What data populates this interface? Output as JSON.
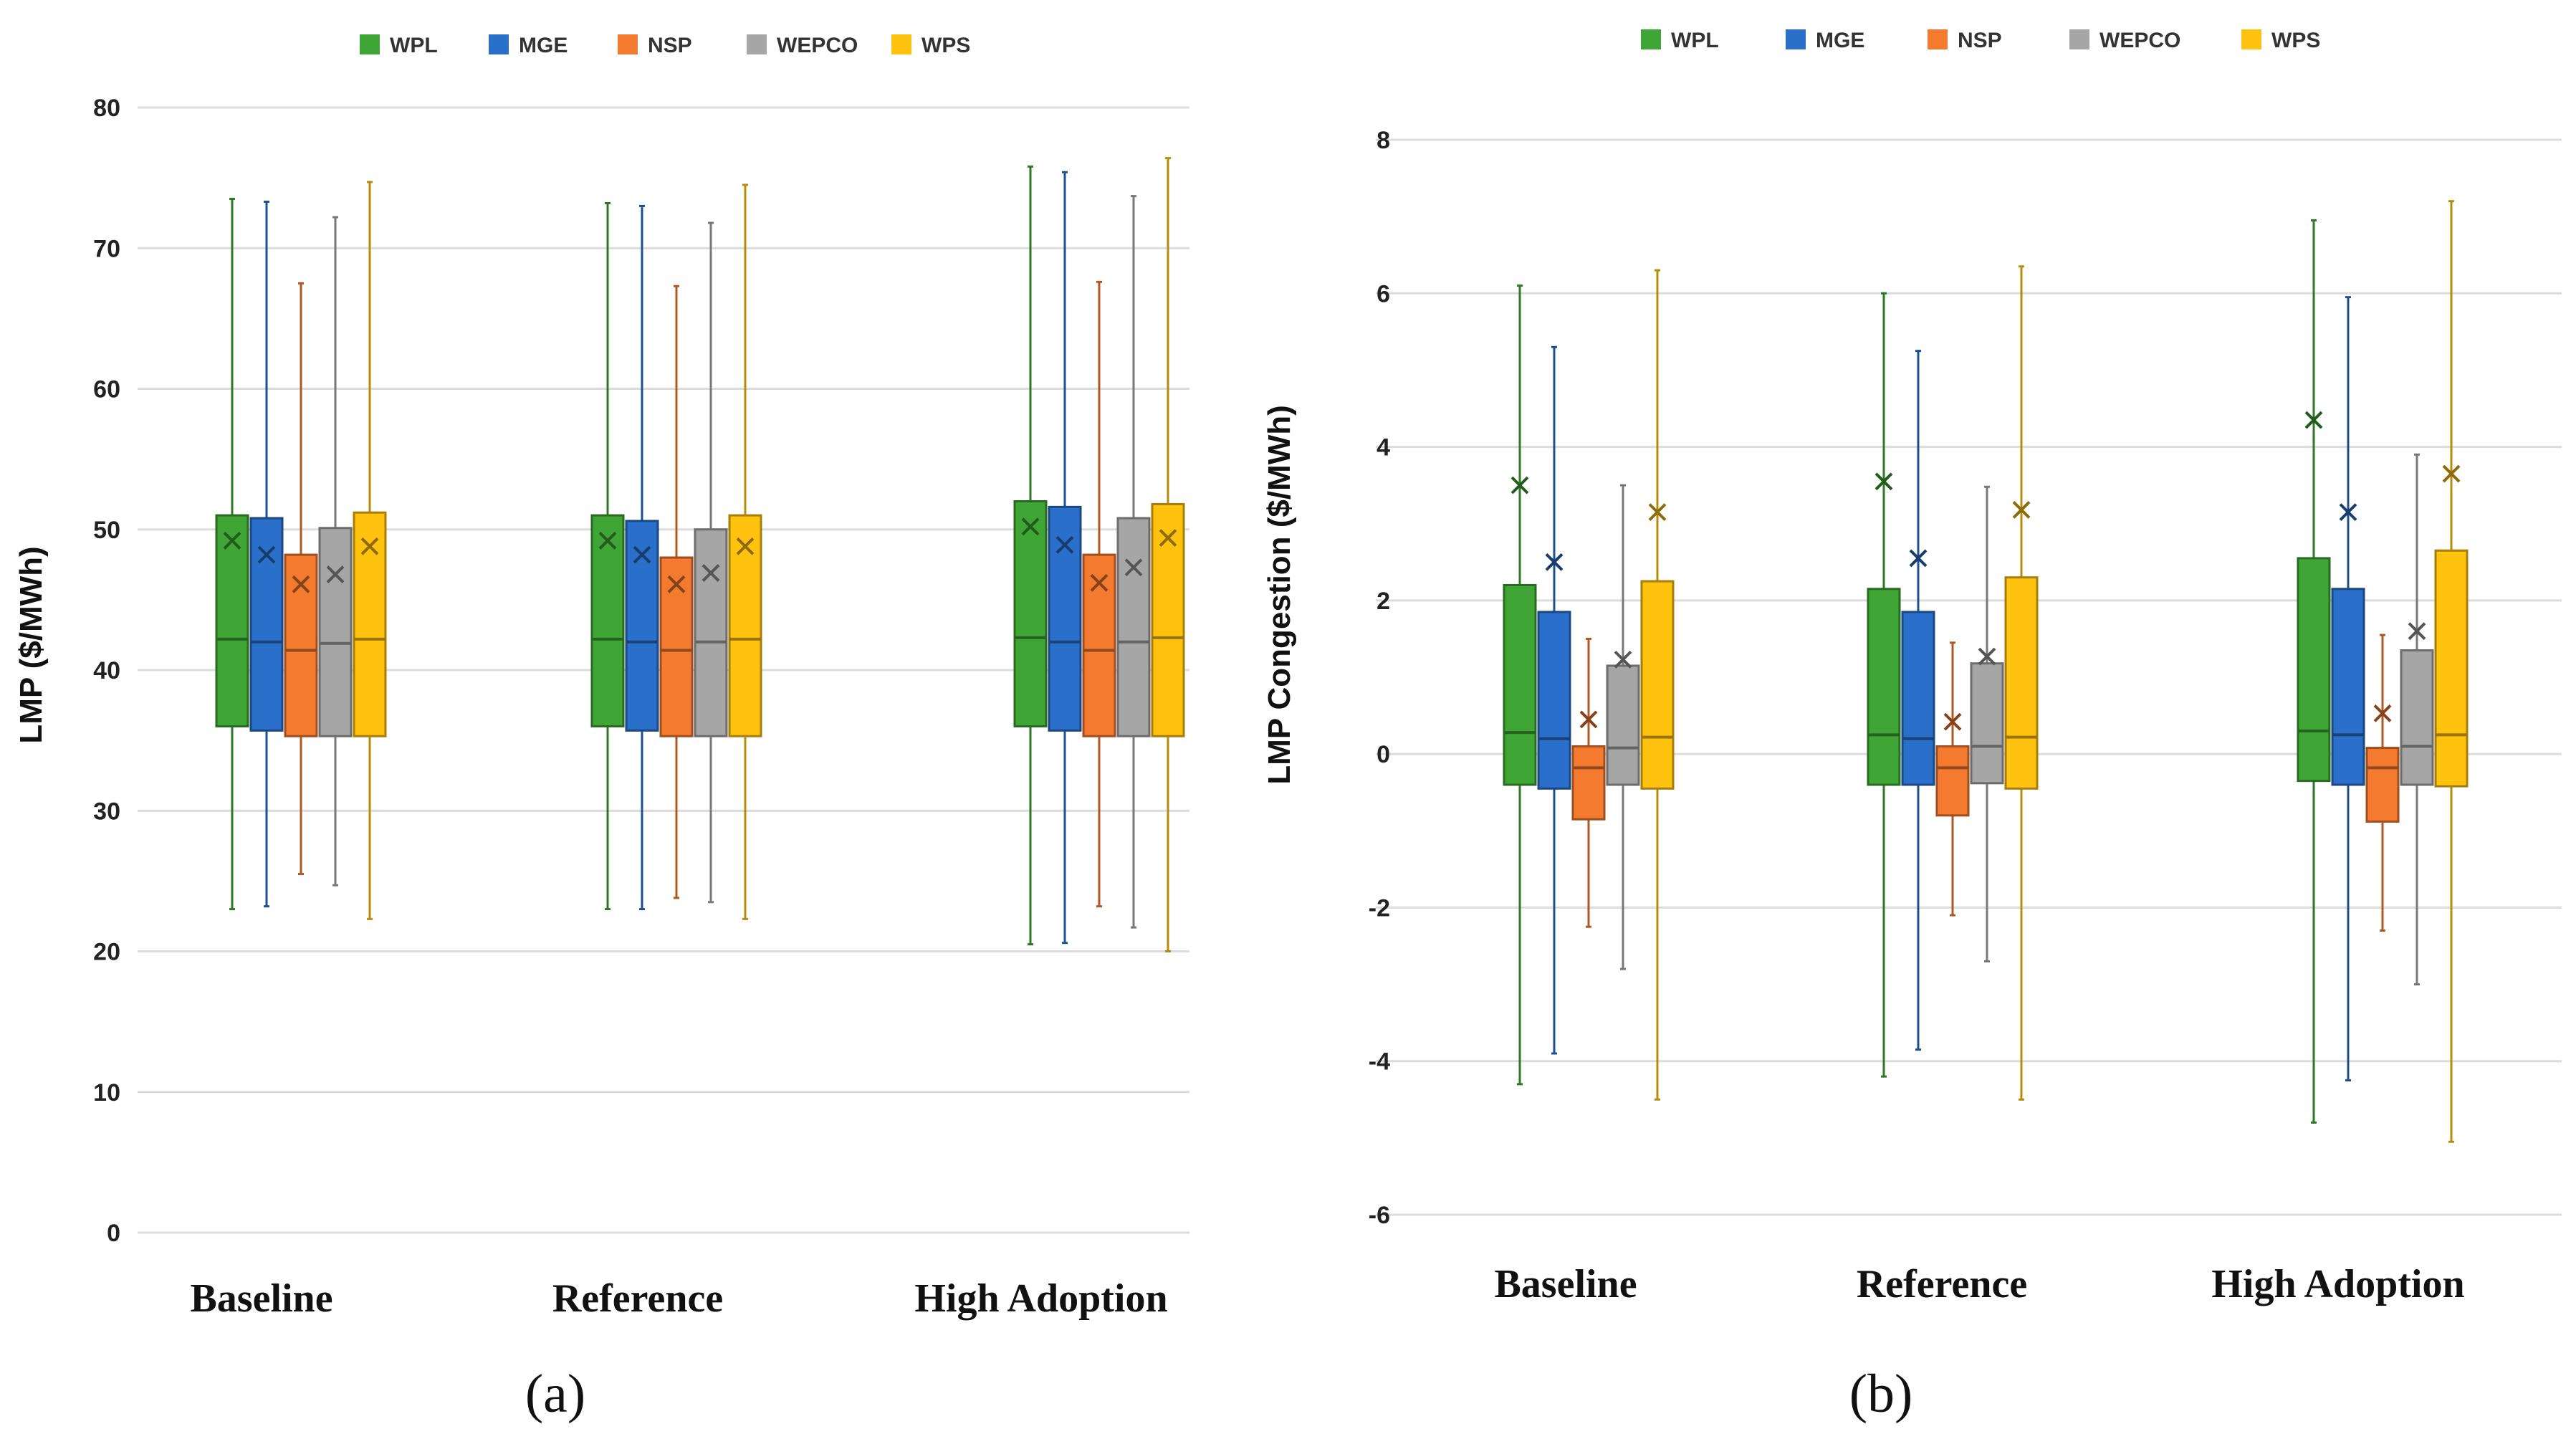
{
  "chart_data": [
    {
      "panel": "(a)",
      "type": "boxplot",
      "title": "",
      "xlabel": "",
      "ylabel": "LMP ($/MWh)",
      "ylim": [
        0,
        80
      ],
      "yticks": [
        0,
        10,
        20,
        30,
        40,
        50,
        60,
        70,
        80
      ],
      "categories": [
        "Baseline",
        "Reference",
        "High Adoption"
      ],
      "series": [
        {
          "name": "WPL",
          "color": "#3fa535",
          "stats": [
            {
              "min": 23.0,
              "q1": 36.0,
              "median": 42.2,
              "q3": 51.0,
              "max": 73.5,
              "mean": 49.2
            },
            {
              "min": 23.0,
              "q1": 36.0,
              "median": 42.2,
              "q3": 51.0,
              "max": 73.2,
              "mean": 49.2
            },
            {
              "min": 20.5,
              "q1": 36.0,
              "median": 42.3,
              "q3": 52.0,
              "max": 75.8,
              "mean": 50.2
            }
          ]
        },
        {
          "name": "MGE",
          "color": "#2a6fc9",
          "stats": [
            {
              "min": 23.2,
              "q1": 35.7,
              "median": 42.0,
              "q3": 50.8,
              "max": 73.3,
              "mean": 48.2
            },
            {
              "min": 23.0,
              "q1": 35.7,
              "median": 42.0,
              "q3": 50.6,
              "max": 73.0,
              "mean": 48.2
            },
            {
              "min": 20.6,
              "q1": 35.7,
              "median": 42.0,
              "q3": 51.6,
              "max": 75.4,
              "mean": 48.9
            }
          ]
        },
        {
          "name": "NSP",
          "color": "#f47a30",
          "stats": [
            {
              "min": 25.5,
              "q1": 35.3,
              "median": 41.4,
              "q3": 48.2,
              "max": 67.5,
              "mean": 46.1
            },
            {
              "min": 23.8,
              "q1": 35.3,
              "median": 41.4,
              "q3": 48.0,
              "max": 67.3,
              "mean": 46.1
            },
            {
              "min": 23.2,
              "q1": 35.3,
              "median": 41.4,
              "q3": 48.2,
              "max": 67.6,
              "mean": 46.2
            }
          ]
        },
        {
          "name": "WEPCO",
          "color": "#a6a6a6",
          "stats": [
            {
              "min": 24.7,
              "q1": 35.3,
              "median": 41.9,
              "q3": 50.1,
              "max": 72.2,
              "mean": 46.8
            },
            {
              "min": 23.5,
              "q1": 35.3,
              "median": 42.0,
              "q3": 50.0,
              "max": 71.8,
              "mean": 46.9
            },
            {
              "min": 21.7,
              "q1": 35.3,
              "median": 42.0,
              "q3": 50.8,
              "max": 73.7,
              "mean": 47.3
            }
          ]
        },
        {
          "name": "WPS",
          "color": "#ffc20e",
          "stats": [
            {
              "min": 22.3,
              "q1": 35.3,
              "median": 42.2,
              "q3": 51.2,
              "max": 74.7,
              "mean": 48.8
            },
            {
              "min": 22.3,
              "q1": 35.3,
              "median": 42.2,
              "q3": 51.0,
              "max": 74.5,
              "mean": 48.8
            },
            {
              "min": 20.0,
              "q1": 35.3,
              "median": 42.3,
              "q3": 51.8,
              "max": 76.4,
              "mean": 49.4
            }
          ]
        }
      ]
    },
    {
      "panel": "(b)",
      "type": "boxplot",
      "title": "",
      "xlabel": "",
      "ylabel": "LMP Congestion ($/MWh)",
      "ylim": [
        -6,
        8
      ],
      "yticks": [
        -6,
        -4,
        -2,
        0,
        2,
        4,
        6,
        8
      ],
      "categories": [
        "Baseline",
        "Reference",
        "High Adoption"
      ],
      "series": [
        {
          "name": "WPL",
          "color": "#3fa535",
          "stats": [
            {
              "min": -4.3,
              "q1": -0.4,
              "median": 0.28,
              "q3": 2.2,
              "max": 6.1,
              "mean": 3.5
            },
            {
              "min": -4.2,
              "q1": -0.4,
              "median": 0.25,
              "q3": 2.15,
              "max": 6.0,
              "mean": 3.55
            },
            {
              "min": -4.8,
              "q1": -0.35,
              "median": 0.3,
              "q3": 2.55,
              "max": 6.95,
              "mean": 4.35
            }
          ]
        },
        {
          "name": "MGE",
          "color": "#2a6fc9",
          "stats": [
            {
              "min": -3.9,
              "q1": -0.45,
              "median": 0.2,
              "q3": 1.85,
              "max": 5.3,
              "mean": 2.5
            },
            {
              "min": -3.85,
              "q1": -0.4,
              "median": 0.2,
              "q3": 1.85,
              "max": 5.25,
              "mean": 2.55
            },
            {
              "min": -4.25,
              "q1": -0.4,
              "median": 0.25,
              "q3": 2.15,
              "max": 5.95,
              "mean": 3.15
            }
          ]
        },
        {
          "name": "NSP",
          "color": "#f47a30",
          "stats": [
            {
              "min": -2.25,
              "q1": -0.85,
              "median": -0.18,
              "q3": 0.1,
              "max": 1.5,
              "mean": 0.45
            },
            {
              "min": -2.1,
              "q1": -0.8,
              "median": -0.18,
              "q3": 0.1,
              "max": 1.45,
              "mean": 0.42
            },
            {
              "min": -2.3,
              "q1": -0.88,
              "median": -0.18,
              "q3": 0.08,
              "max": 1.55,
              "mean": 0.53
            }
          ]
        },
        {
          "name": "WEPCO",
          "color": "#a6a6a6",
          "stats": [
            {
              "min": -2.8,
              "q1": -0.4,
              "median": 0.08,
              "q3": 1.15,
              "max": 3.5,
              "mean": 1.23
            },
            {
              "min": -2.7,
              "q1": -0.38,
              "median": 0.1,
              "q3": 1.18,
              "max": 3.48,
              "mean": 1.27
            },
            {
              "min": -3.0,
              "q1": -0.4,
              "median": 0.1,
              "q3": 1.35,
              "max": 3.9,
              "mean": 1.6
            }
          ]
        },
        {
          "name": "WPS",
          "color": "#ffc20e",
          "stats": [
            {
              "min": -4.5,
              "q1": -0.45,
              "median": 0.22,
              "q3": 2.25,
              "max": 6.3,
              "mean": 3.15
            },
            {
              "min": -4.5,
              "q1": -0.45,
              "median": 0.22,
              "q3": 2.3,
              "max": 6.35,
              "mean": 3.18
            },
            {
              "min": -5.05,
              "q1": -0.42,
              "median": 0.25,
              "q3": 2.65,
              "max": 7.2,
              "mean": 3.65
            }
          ]
        }
      ]
    }
  ]
}
